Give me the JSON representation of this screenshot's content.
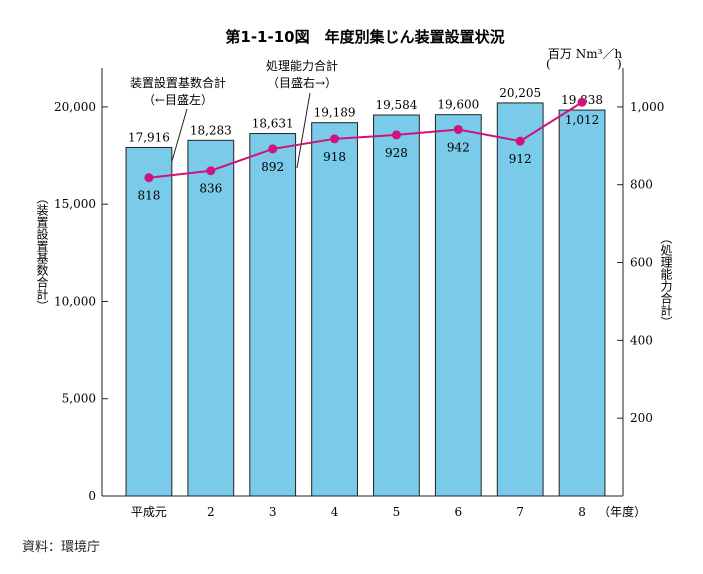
{
  "chart_data": {
    "type": "bar",
    "title": "第1-1-10図　年度別集じん装置設置状況",
    "categories": [
      "平成元",
      "2",
      "3",
      "4",
      "5",
      "6",
      "7",
      "8"
    ],
    "x_unit": "（年度）",
    "series": [
      {
        "name": "装置設置基数合計",
        "axis": "left",
        "type": "bar",
        "values": [
          17916,
          18283,
          18631,
          19189,
          19584,
          19600,
          20205,
          19838
        ]
      },
      {
        "name": "処理能力合計",
        "axis": "right",
        "type": "line",
        "values": [
          818,
          836,
          892,
          918,
          928,
          942,
          912,
          1012
        ]
      }
    ],
    "bar_labels": [
      "17,916",
      "18,283",
      "18,631",
      "19,189",
      "19,584",
      "19,600",
      "20,205",
      "19,838"
    ],
    "line_labels": [
      "818",
      "836",
      "892",
      "918",
      "928",
      "942",
      "912",
      "1,012"
    ],
    "ylabel_left": "（装置設置基数合計）",
    "ylabel_right": "（処理能力合計）",
    "ylim_left": [
      0,
      22000
    ],
    "ylim_right": [
      0,
      1100
    ],
    "yticks_left": [
      "0",
      "5,000",
      "10,000",
      "15,000",
      "20,000"
    ],
    "yticks_right": [
      "200",
      "400",
      "600",
      "800",
      "1,000"
    ],
    "right_unit": "百万 Nm³／h",
    "annotations": {
      "bars_line1": "装置設置基数合計",
      "bars_line2": "（←目盛左）",
      "line_line1": "処理能力合計",
      "line_line2": "（目盛右→）"
    },
    "colors": {
      "bar": "#79cbe9",
      "bar_stroke": "#222222",
      "line": "#d0127c"
    },
    "grid": false
  },
  "source": "資料：環境庁"
}
